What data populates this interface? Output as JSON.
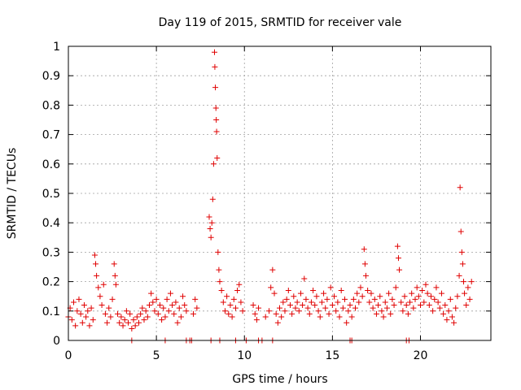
{
  "chart_data": {
    "type": "scatter",
    "title": "Day 119 of 2015, SRMTID for receiver vale",
    "xlabel": "GPS time / hours",
    "ylabel": "SRMTID / TECUs",
    "xlim": [
      0,
      24
    ],
    "ylim": [
      0,
      1
    ],
    "xticks": [
      0,
      5,
      10,
      15,
      20
    ],
    "yticks": [
      0,
      0.1,
      0.2,
      0.3,
      0.4,
      0.5,
      0.6,
      0.7,
      0.8,
      0.9,
      1
    ],
    "xtick_labels": [
      "0",
      "5",
      "10",
      "15",
      "20"
    ],
    "ytick_labels": [
      "0",
      "0.1",
      "0.2",
      "0.3",
      "0.4",
      "0.5",
      "0.6",
      "0.7",
      "0.8",
      "0.9",
      "1"
    ],
    "grid": true,
    "marker": "+",
    "color": "#e00000",
    "series": [
      {
        "name": "SRMTID",
        "points": [
          [
            0.0,
            0.08
          ],
          [
            0.1,
            0.11
          ],
          [
            0.2,
            0.07
          ],
          [
            0.3,
            0.13
          ],
          [
            0.4,
            0.05
          ],
          [
            0.5,
            0.1
          ],
          [
            0.6,
            0.14
          ],
          [
            0.7,
            0.09
          ],
          [
            0.8,
            0.06
          ],
          [
            0.9,
            0.12
          ],
          [
            1.0,
            0.08
          ],
          [
            1.1,
            0.1
          ],
          [
            1.2,
            0.05
          ],
          [
            1.3,
            0.11
          ],
          [
            1.4,
            0.07
          ],
          [
            1.5,
            0.29
          ],
          [
            1.55,
            0.26
          ],
          [
            1.6,
            0.22
          ],
          [
            1.7,
            0.18
          ],
          [
            1.8,
            0.15
          ],
          [
            1.9,
            0.12
          ],
          [
            2.0,
            0.19
          ],
          [
            2.1,
            0.09
          ],
          [
            2.2,
            0.06
          ],
          [
            2.3,
            0.11
          ],
          [
            2.4,
            0.08
          ],
          [
            2.5,
            0.14
          ],
          [
            2.6,
            0.26
          ],
          [
            2.65,
            0.22
          ],
          [
            2.7,
            0.19
          ],
          [
            2.8,
            0.09
          ],
          [
            2.9,
            0.06
          ],
          [
            3.0,
            0.08
          ],
          [
            3.1,
            0.05
          ],
          [
            3.2,
            0.07
          ],
          [
            3.3,
            0.1
          ],
          [
            3.4,
            0.06
          ],
          [
            3.5,
            0.09
          ],
          [
            3.6,
            0.04
          ],
          [
            3.7,
            0.07
          ],
          [
            3.8,
            0.05
          ],
          [
            3.9,
            0.08
          ],
          [
            4.0,
            0.06
          ],
          [
            4.1,
            0.09
          ],
          [
            4.2,
            0.11
          ],
          [
            4.3,
            0.07
          ],
          [
            4.4,
            0.1
          ],
          [
            4.5,
            0.08
          ],
          [
            4.6,
            0.12
          ],
          [
            4.7,
            0.16
          ],
          [
            4.8,
            0.13
          ],
          [
            4.9,
            0.1
          ],
          [
            5.0,
            0.14
          ],
          [
            5.1,
            0.09
          ],
          [
            5.2,
            0.12
          ],
          [
            5.3,
            0.07
          ],
          [
            5.4,
            0.11
          ],
          [
            5.5,
            0.08
          ],
          [
            5.6,
            0.14
          ],
          [
            5.7,
            0.1
          ],
          [
            5.8,
            0.16
          ],
          [
            5.9,
            0.12
          ],
          [
            6.0,
            0.09
          ],
          [
            6.1,
            0.13
          ],
          [
            6.2,
            0.06
          ],
          [
            6.3,
            0.11
          ],
          [
            6.4,
            0.08
          ],
          [
            6.5,
            0.15
          ],
          [
            6.6,
            0.12
          ],
          [
            6.7,
            0.1
          ],
          [
            7.1,
            0.09
          ],
          [
            7.2,
            0.14
          ],
          [
            7.3,
            0.11
          ],
          [
            8.0,
            0.42
          ],
          [
            8.05,
            0.38
          ],
          [
            8.1,
            0.35
          ],
          [
            8.15,
            0.4
          ],
          [
            8.2,
            0.48
          ],
          [
            8.25,
            0.6
          ],
          [
            8.3,
            0.98
          ],
          [
            8.32,
            0.93
          ],
          [
            8.35,
            0.86
          ],
          [
            8.38,
            0.79
          ],
          [
            8.4,
            0.75
          ],
          [
            8.42,
            0.71
          ],
          [
            8.45,
            0.62
          ],
          [
            8.5,
            0.3
          ],
          [
            8.55,
            0.24
          ],
          [
            8.6,
            0.2
          ],
          [
            8.7,
            0.17
          ],
          [
            8.8,
            0.13
          ],
          [
            8.9,
            0.1
          ],
          [
            9.0,
            0.15
          ],
          [
            9.1,
            0.09
          ],
          [
            9.2,
            0.12
          ],
          [
            9.3,
            0.08
          ],
          [
            9.4,
            0.14
          ],
          [
            9.5,
            0.11
          ],
          [
            9.6,
            0.17
          ],
          [
            9.7,
            0.19
          ],
          [
            9.8,
            0.13
          ],
          [
            9.9,
            0.1
          ],
          [
            10.5,
            0.12
          ],
          [
            10.6,
            0.09
          ],
          [
            10.7,
            0.07
          ],
          [
            10.8,
            0.11
          ],
          [
            11.2,
            0.08
          ],
          [
            11.4,
            0.1
          ],
          [
            11.5,
            0.18
          ],
          [
            11.6,
            0.24
          ],
          [
            11.7,
            0.16
          ],
          [
            11.8,
            0.09
          ],
          [
            11.9,
            0.06
          ],
          [
            12.0,
            0.11
          ],
          [
            12.1,
            0.08
          ],
          [
            12.2,
            0.13
          ],
          [
            12.3,
            0.1
          ],
          [
            12.4,
            0.14
          ],
          [
            12.5,
            0.17
          ],
          [
            12.6,
            0.12
          ],
          [
            12.7,
            0.09
          ],
          [
            12.8,
            0.15
          ],
          [
            12.9,
            0.11
          ],
          [
            13.0,
            0.13
          ],
          [
            13.1,
            0.1
          ],
          [
            13.2,
            0.16
          ],
          [
            13.3,
            0.12
          ],
          [
            13.4,
            0.21
          ],
          [
            13.5,
            0.14
          ],
          [
            13.6,
            0.11
          ],
          [
            13.7,
            0.09
          ],
          [
            13.8,
            0.13
          ],
          [
            13.9,
            0.17
          ],
          [
            14.0,
            0.12
          ],
          [
            14.1,
            0.15
          ],
          [
            14.2,
            0.1
          ],
          [
            14.3,
            0.08
          ],
          [
            14.4,
            0.13
          ],
          [
            14.5,
            0.16
          ],
          [
            14.6,
            0.11
          ],
          [
            14.7,
            0.14
          ],
          [
            14.8,
            0.09
          ],
          [
            14.9,
            0.18
          ],
          [
            15.0,
            0.12
          ],
          [
            15.1,
            0.15
          ],
          [
            15.2,
            0.1
          ],
          [
            15.3,
            0.13
          ],
          [
            15.4,
            0.08
          ],
          [
            15.5,
            0.17
          ],
          [
            15.6,
            0.11
          ],
          [
            15.7,
            0.14
          ],
          [
            15.8,
            0.06
          ],
          [
            15.9,
            0.1
          ],
          [
            16.0,
            0.12
          ],
          [
            16.1,
            0.08
          ],
          [
            16.2,
            0.14
          ],
          [
            16.3,
            0.11
          ],
          [
            16.4,
            0.16
          ],
          [
            16.5,
            0.13
          ],
          [
            16.6,
            0.18
          ],
          [
            16.7,
            0.15
          ],
          [
            16.8,
            0.31
          ],
          [
            16.85,
            0.26
          ],
          [
            16.9,
            0.22
          ],
          [
            17.0,
            0.17
          ],
          [
            17.1,
            0.13
          ],
          [
            17.2,
            0.16
          ],
          [
            17.3,
            0.11
          ],
          [
            17.4,
            0.14
          ],
          [
            17.5,
            0.09
          ],
          [
            17.6,
            0.12
          ],
          [
            17.7,
            0.15
          ],
          [
            17.8,
            0.1
          ],
          [
            17.9,
            0.08
          ],
          [
            18.0,
            0.13
          ],
          [
            18.1,
            0.11
          ],
          [
            18.2,
            0.16
          ],
          [
            18.3,
            0.09
          ],
          [
            18.4,
            0.14
          ],
          [
            18.5,
            0.12
          ],
          [
            18.6,
            0.18
          ],
          [
            18.7,
            0.32
          ],
          [
            18.75,
            0.28
          ],
          [
            18.8,
            0.24
          ],
          [
            18.9,
            0.13
          ],
          [
            19.0,
            0.1
          ],
          [
            19.1,
            0.15
          ],
          [
            19.2,
            0.12
          ],
          [
            19.3,
            0.09
          ],
          [
            19.4,
            0.13
          ],
          [
            19.5,
            0.16
          ],
          [
            19.6,
            0.11
          ],
          [
            19.7,
            0.14
          ],
          [
            19.8,
            0.18
          ],
          [
            19.9,
            0.15
          ],
          [
            20.0,
            0.12
          ],
          [
            20.1,
            0.17
          ],
          [
            20.2,
            0.13
          ],
          [
            20.3,
            0.19
          ],
          [
            20.4,
            0.16
          ],
          [
            20.5,
            0.12
          ],
          [
            20.6,
            0.15
          ],
          [
            20.7,
            0.1
          ],
          [
            20.8,
            0.14
          ],
          [
            20.9,
            0.18
          ],
          [
            21.0,
            0.13
          ],
          [
            21.1,
            0.11
          ],
          [
            21.2,
            0.16
          ],
          [
            21.3,
            0.09
          ],
          [
            21.4,
            0.12
          ],
          [
            21.5,
            0.07
          ],
          [
            21.6,
            0.1
          ],
          [
            21.7,
            0.14
          ],
          [
            21.8,
            0.08
          ],
          [
            21.9,
            0.06
          ],
          [
            22.0,
            0.11
          ],
          [
            22.1,
            0.15
          ],
          [
            22.2,
            0.22
          ],
          [
            22.25,
            0.52
          ],
          [
            22.3,
            0.37
          ],
          [
            22.35,
            0.3
          ],
          [
            22.4,
            0.26
          ],
          [
            22.45,
            0.2
          ],
          [
            22.5,
            0.16
          ],
          [
            22.6,
            0.12
          ],
          [
            22.7,
            0.18
          ],
          [
            22.8,
            0.14
          ],
          [
            22.9,
            0.2
          ],
          [
            3.6,
            0.0
          ],
          [
            5.5,
            0.0
          ],
          [
            6.7,
            0.0
          ],
          [
            6.9,
            0.0
          ],
          [
            7.0,
            0.0
          ],
          [
            8.1,
            0.0
          ],
          [
            8.6,
            0.0
          ],
          [
            9.5,
            0.0
          ],
          [
            10.1,
            0.0
          ],
          [
            10.8,
            0.0
          ],
          [
            11.0,
            0.0
          ],
          [
            11.6,
            0.0
          ],
          [
            16.0,
            0.0
          ],
          [
            16.1,
            0.0
          ],
          [
            19.2,
            0.0
          ],
          [
            19.35,
            0.0
          ]
        ]
      }
    ]
  }
}
